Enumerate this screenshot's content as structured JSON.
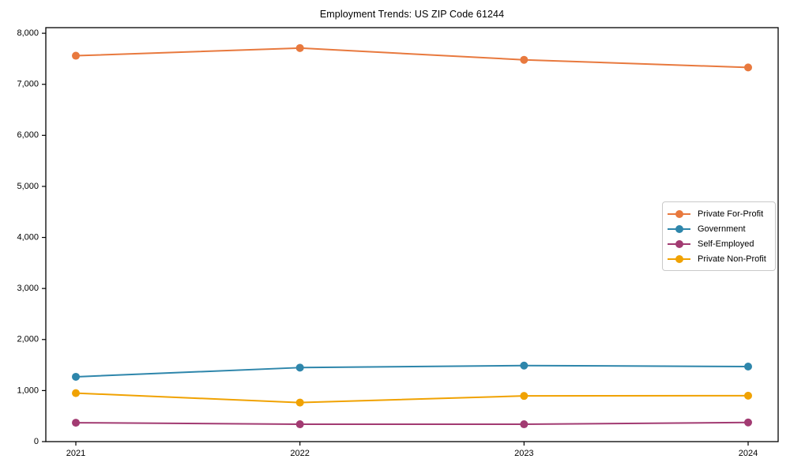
{
  "chart_data": {
    "type": "line",
    "title": "Employment Trends: US ZIP Code 61244",
    "xlabel": "",
    "ylabel": "",
    "x": [
      2021,
      2022,
      2023,
      2024
    ],
    "x_tick_labels": [
      "2021",
      "2022",
      "2023",
      "2024"
    ],
    "y_tick_values": [
      0,
      1000,
      2000,
      3000,
      4000,
      5000,
      6000,
      7000,
      8000
    ],
    "y_tick_labels": [
      "0",
      "1,000",
      "2,000",
      "3,000",
      "4,000",
      "5,000",
      "6,000",
      "7,000",
      "8,000"
    ],
    "ylim": [
      0,
      8110
    ],
    "grid": false,
    "legend_position": "center-right",
    "series": [
      {
        "name": "Private For-Profit",
        "color": "#E8793E",
        "values": [
          7560,
          7710,
          7480,
          7330
        ]
      },
      {
        "name": "Government",
        "color": "#2E86AB",
        "values": [
          1270,
          1450,
          1490,
          1470
        ]
      },
      {
        "name": "Self-Employed",
        "color": "#A23B72",
        "values": [
          370,
          340,
          340,
          375
        ]
      },
      {
        "name": "Private Non-Profit",
        "color": "#F0A202",
        "values": [
          950,
          765,
          895,
          900
        ]
      }
    ]
  }
}
